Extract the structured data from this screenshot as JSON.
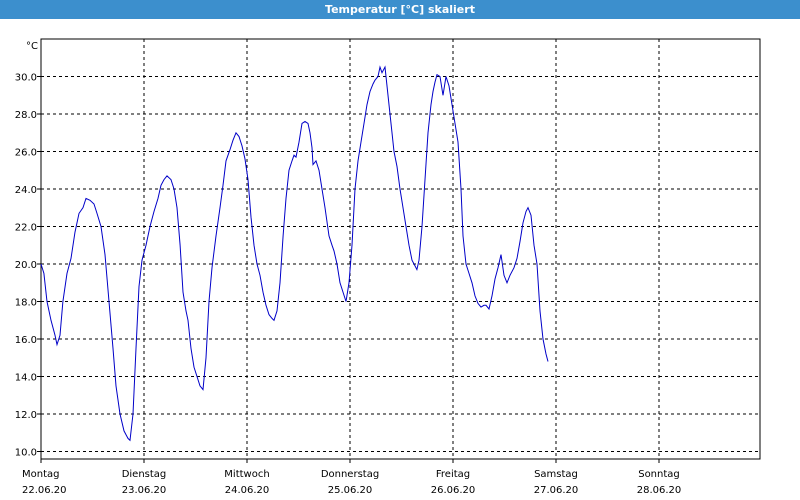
{
  "window": {
    "title": "Temperatur [°C] skaliert"
  },
  "chart_data": {
    "type": "line",
    "title": "Temperatur [°C] skaliert",
    "unit_label": "°C",
    "ylim": [
      9.6,
      32.0
    ],
    "yticks": [
      10.0,
      12.0,
      14.0,
      16.0,
      18.0,
      20.0,
      22.0,
      24.0,
      26.0,
      28.0,
      30.0
    ],
    "xlim": [
      0,
      7
    ],
    "grid": true,
    "days": [
      {
        "name": "Montag",
        "date": "22.06.20"
      },
      {
        "name": "Dienstag",
        "date": "23.06.20"
      },
      {
        "name": "Mittwoch",
        "date": "24.06.20"
      },
      {
        "name": "Donnerstag",
        "date": "25.06.20"
      },
      {
        "name": "Freitag",
        "date": "26.06.20"
      },
      {
        "name": "Samstag",
        "date": "27.06.20"
      },
      {
        "name": "Sonntag",
        "date": "28.06.20"
      }
    ],
    "series": [
      {
        "color": "#0000c8",
        "points": [
          [
            0.0,
            20.0
          ],
          [
            0.028,
            19.5
          ],
          [
            0.058,
            18.0
          ],
          [
            0.097,
            17.0
          ],
          [
            0.136,
            16.2
          ],
          [
            0.155,
            15.7
          ],
          [
            0.184,
            16.2
          ],
          [
            0.213,
            18.0
          ],
          [
            0.252,
            19.5
          ],
          [
            0.291,
            20.3
          ],
          [
            0.33,
            21.7
          ],
          [
            0.369,
            22.7
          ],
          [
            0.408,
            23.0
          ],
          [
            0.437,
            23.5
          ],
          [
            0.476,
            23.4
          ],
          [
            0.515,
            23.2
          ],
          [
            0.544,
            22.7
          ],
          [
            0.583,
            22.0
          ],
          [
            0.621,
            20.5
          ],
          [
            0.66,
            18.0
          ],
          [
            0.699,
            15.5
          ],
          [
            0.728,
            13.5
          ],
          [
            0.767,
            12.0
          ],
          [
            0.806,
            11.1
          ],
          [
            0.845,
            10.7
          ],
          [
            0.864,
            10.6
          ],
          [
            0.893,
            12.0
          ],
          [
            0.922,
            15.5
          ],
          [
            0.951,
            18.8
          ],
          [
            0.981,
            20.2
          ],
          [
            1.019,
            21.0
          ],
          [
            1.058,
            22.0
          ],
          [
            1.097,
            22.8
          ],
          [
            1.136,
            23.5
          ],
          [
            1.165,
            24.2
          ],
          [
            1.194,
            24.5
          ],
          [
            1.223,
            24.7
          ],
          [
            1.262,
            24.5
          ],
          [
            1.291,
            24.0
          ],
          [
            1.32,
            23.0
          ],
          [
            1.35,
            21.0
          ],
          [
            1.379,
            18.5
          ],
          [
            1.408,
            17.5
          ],
          [
            1.427,
            17.0
          ],
          [
            1.456,
            15.5
          ],
          [
            1.485,
            14.5
          ],
          [
            1.515,
            14.0
          ],
          [
            1.544,
            13.5
          ],
          [
            1.573,
            13.3
          ],
          [
            1.602,
            15.0
          ],
          [
            1.631,
            18.0
          ],
          [
            1.66,
            19.8
          ],
          [
            1.699,
            21.5
          ],
          [
            1.738,
            23.0
          ],
          [
            1.767,
            24.2
          ],
          [
            1.796,
            25.5
          ],
          [
            1.835,
            26.1
          ],
          [
            1.864,
            26.6
          ],
          [
            1.893,
            27.0
          ],
          [
            1.922,
            26.8
          ],
          [
            1.951,
            26.3
          ],
          [
            1.981,
            25.6
          ],
          [
            2.01,
            24.5
          ],
          [
            2.039,
            22.5
          ],
          [
            2.068,
            21.0
          ],
          [
            2.097,
            20.0
          ],
          [
            2.126,
            19.4
          ],
          [
            2.155,
            18.5
          ],
          [
            2.184,
            17.8
          ],
          [
            2.214,
            17.3
          ],
          [
            2.243,
            17.1
          ],
          [
            2.262,
            17.0
          ],
          [
            2.291,
            17.5
          ],
          [
            2.32,
            19.0
          ],
          [
            2.35,
            21.5
          ],
          [
            2.379,
            23.5
          ],
          [
            2.408,
            25.0
          ],
          [
            2.437,
            25.5
          ],
          [
            2.456,
            25.8
          ],
          [
            2.476,
            25.7
          ],
          [
            2.505,
            26.5
          ],
          [
            2.534,
            27.5
          ],
          [
            2.563,
            27.6
          ],
          [
            2.592,
            27.5
          ],
          [
            2.612,
            27.0
          ],
          [
            2.631,
            26.2
          ],
          [
            2.641,
            25.3
          ],
          [
            2.67,
            25.5
          ],
          [
            2.699,
            25.0
          ],
          [
            2.728,
            24.0
          ],
          [
            2.757,
            23.0
          ],
          [
            2.796,
            21.5
          ],
          [
            2.825,
            21.0
          ],
          [
            2.845,
            20.7
          ],
          [
            2.874,
            20.0
          ],
          [
            2.903,
            19.0
          ],
          [
            2.932,
            18.5
          ],
          [
            2.961,
            18.0
          ],
          [
            2.99,
            19.0
          ],
          [
            3.019,
            21.0
          ],
          [
            3.049,
            24.0
          ],
          [
            3.078,
            25.5
          ],
          [
            3.107,
            26.5
          ],
          [
            3.136,
            27.5
          ],
          [
            3.165,
            28.5
          ],
          [
            3.194,
            29.2
          ],
          [
            3.223,
            29.6
          ],
          [
            3.243,
            29.8
          ],
          [
            3.272,
            30.0
          ],
          [
            3.291,
            30.5
          ],
          [
            3.311,
            30.2
          ],
          [
            3.34,
            30.5
          ],
          [
            3.369,
            29.0
          ],
          [
            3.398,
            27.5
          ],
          [
            3.427,
            26.0
          ],
          [
            3.456,
            25.2
          ],
          [
            3.485,
            24.0
          ],
          [
            3.515,
            23.0
          ],
          [
            3.544,
            22.0
          ],
          [
            3.573,
            21.0
          ],
          [
            3.602,
            20.2
          ],
          [
            3.631,
            19.9
          ],
          [
            3.65,
            19.7
          ],
          [
            3.67,
            20.2
          ],
          [
            3.699,
            22.0
          ],
          [
            3.728,
            24.5
          ],
          [
            3.757,
            27.0
          ],
          [
            3.786,
            28.5
          ],
          [
            3.806,
            29.2
          ],
          [
            3.825,
            29.7
          ],
          [
            3.845,
            30.1
          ],
          [
            3.874,
            30.0
          ],
          [
            3.903,
            29.0
          ],
          [
            3.932,
            30.0
          ],
          [
            3.961,
            29.5
          ],
          [
            3.99,
            28.5
          ],
          [
            4.019,
            27.5
          ],
          [
            4.049,
            26.5
          ],
          [
            4.078,
            24.0
          ],
          [
            4.097,
            21.5
          ],
          [
            4.126,
            20.0
          ],
          [
            4.155,
            19.5
          ],
          [
            4.184,
            19.0
          ],
          [
            4.214,
            18.3
          ],
          [
            4.243,
            17.9
          ],
          [
            4.272,
            17.7
          ],
          [
            4.301,
            17.8
          ],
          [
            4.32,
            17.8
          ],
          [
            4.35,
            17.6
          ],
          [
            4.379,
            18.3
          ],
          [
            4.408,
            19.2
          ],
          [
            4.437,
            19.8
          ],
          [
            4.466,
            20.5
          ],
          [
            4.495,
            19.4
          ],
          [
            4.524,
            19.0
          ],
          [
            4.553,
            19.4
          ],
          [
            4.592,
            19.8
          ],
          [
            4.621,
            20.3
          ],
          [
            4.65,
            21.2
          ],
          [
            4.68,
            22.2
          ],
          [
            4.709,
            22.8
          ],
          [
            4.728,
            23.0
          ],
          [
            4.757,
            22.6
          ],
          [
            4.786,
            21.0
          ],
          [
            4.816,
            20.0
          ],
          [
            4.845,
            17.5
          ],
          [
            4.874,
            16.0
          ],
          [
            4.903,
            15.2
          ],
          [
            4.922,
            14.8
          ]
        ]
      }
    ]
  }
}
